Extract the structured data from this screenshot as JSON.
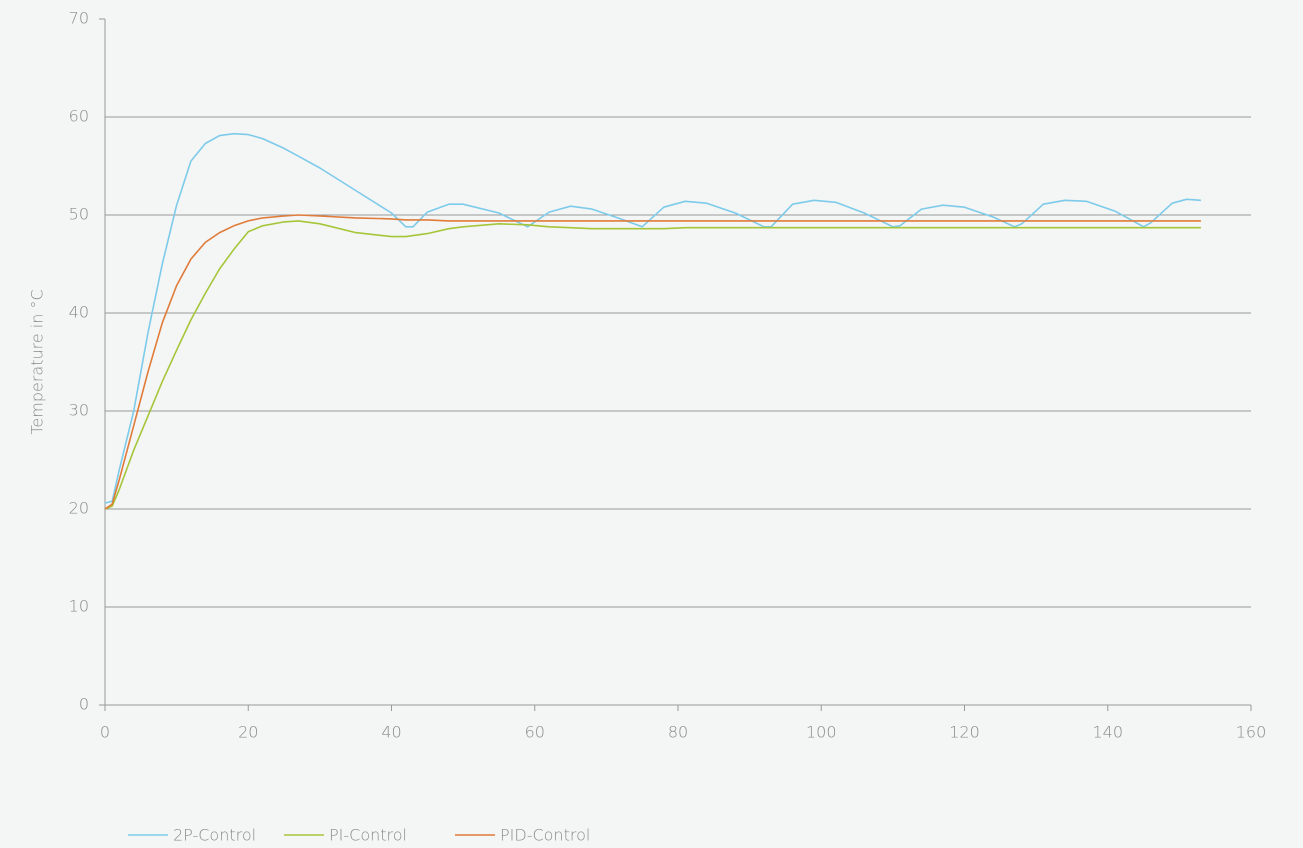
{
  "chart_data": {
    "type": "line",
    "y_label": "Temperature in °C",
    "x": [
      0,
      1,
      2,
      4,
      6,
      8,
      10,
      12,
      14,
      16,
      18,
      20,
      22,
      25,
      27,
      30,
      35,
      40,
      42,
      43,
      45,
      48,
      50,
      55,
      59,
      62,
      65,
      68,
      72,
      75,
      78,
      81,
      84,
      88,
      92,
      93,
      96,
      99,
      102,
      106,
      110,
      111,
      114,
      117,
      120,
      124,
      127,
      128,
      131,
      134,
      137,
      141,
      145,
      146,
      149,
      151,
      153
    ],
    "series": [
      {
        "name": "2P-Control",
        "color": "#7dcbea",
        "values": [
          20.6,
          20.8,
          24,
          30,
          38,
          45,
          51,
          55.5,
          57.3,
          58.1,
          58.3,
          58.2,
          57.8,
          56.8,
          56,
          54.8,
          52.5,
          50.2,
          48.8,
          48.8,
          50.3,
          51.1,
          51.1,
          50.2,
          48.8,
          50.3,
          50.9,
          50.6,
          49.6,
          48.8,
          50.8,
          51.4,
          51.2,
          50.2,
          48.8,
          48.8,
          51.1,
          51.5,
          51.3,
          50.2,
          48.8,
          48.9,
          50.6,
          51,
          50.8,
          49.8,
          48.8,
          49.1,
          51.1,
          51.5,
          51.4,
          50.4,
          48.8,
          49.2,
          51.2,
          51.6,
          51.5
        ]
      },
      {
        "name": "PI-Control",
        "color": "#a5c639",
        "values": [
          20,
          20.3,
          22,
          26,
          29.5,
          33,
          36.2,
          39.3,
          42,
          44.5,
          46.5,
          48.3,
          48.9,
          49.3,
          49.4,
          49.1,
          48.2,
          47.8,
          47.8,
          47.9,
          48.1,
          48.6,
          48.8,
          49.1,
          49,
          48.8,
          48.7,
          48.6,
          48.6,
          48.6,
          48.6,
          48.7,
          48.7,
          48.7,
          48.7,
          48.7,
          48.7,
          48.7,
          48.7,
          48.7,
          48.7,
          48.7,
          48.7,
          48.7,
          48.7,
          48.7,
          48.7,
          48.7,
          48.7,
          48.7,
          48.7,
          48.7,
          48.7,
          48.7,
          48.7,
          48.7,
          48.7
        ]
      },
      {
        "name": "PID-Control",
        "color": "#e07b39",
        "values": [
          20,
          20.5,
          23,
          28.5,
          34,
          39,
          42.8,
          45.5,
          47.2,
          48.2,
          48.9,
          49.4,
          49.7,
          49.9,
          50,
          49.9,
          49.7,
          49.6,
          49.5,
          49.5,
          49.5,
          49.4,
          49.4,
          49.4,
          49.4,
          49.4,
          49.4,
          49.4,
          49.4,
          49.4,
          49.4,
          49.4,
          49.4,
          49.4,
          49.4,
          49.4,
          49.4,
          49.4,
          49.4,
          49.4,
          49.4,
          49.4,
          49.4,
          49.4,
          49.4,
          49.4,
          49.4,
          49.4,
          49.4,
          49.4,
          49.4,
          49.4,
          49.4,
          49.4,
          49.4,
          49.4,
          49.4
        ]
      }
    ],
    "xlim": [
      0,
      160
    ],
    "xticks": [
      0,
      20,
      40,
      60,
      80,
      100,
      120,
      140,
      160
    ],
    "ylim": [
      0,
      70
    ],
    "yticks": [
      0,
      10,
      20,
      30,
      40,
      50,
      60,
      70
    ],
    "grid": true
  }
}
